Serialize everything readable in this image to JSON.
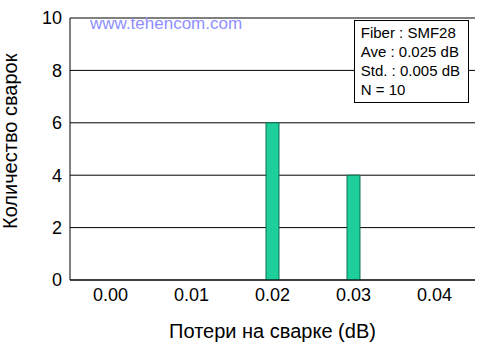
{
  "chart_data": {
    "type": "bar",
    "categories": [
      "0.00",
      "0.01",
      "0.02",
      "0.03",
      "0.04"
    ],
    "values": [
      0,
      0,
      6,
      4,
      0
    ],
    "color": "#1fcf9b",
    "ylim": [
      0,
      10
    ],
    "yticks": [
      0,
      2,
      4,
      6,
      8,
      10
    ],
    "grid": true,
    "xlabel": "Потери на сварке (dB)",
    "ylabel": "Количество сварок",
    "annotations": [
      "Fiber : SMF28",
      "Ave : 0.025 dB",
      "Std. : 0.005 dB",
      "N = 10"
    ],
    "watermark": "www.tehencom.com"
  }
}
